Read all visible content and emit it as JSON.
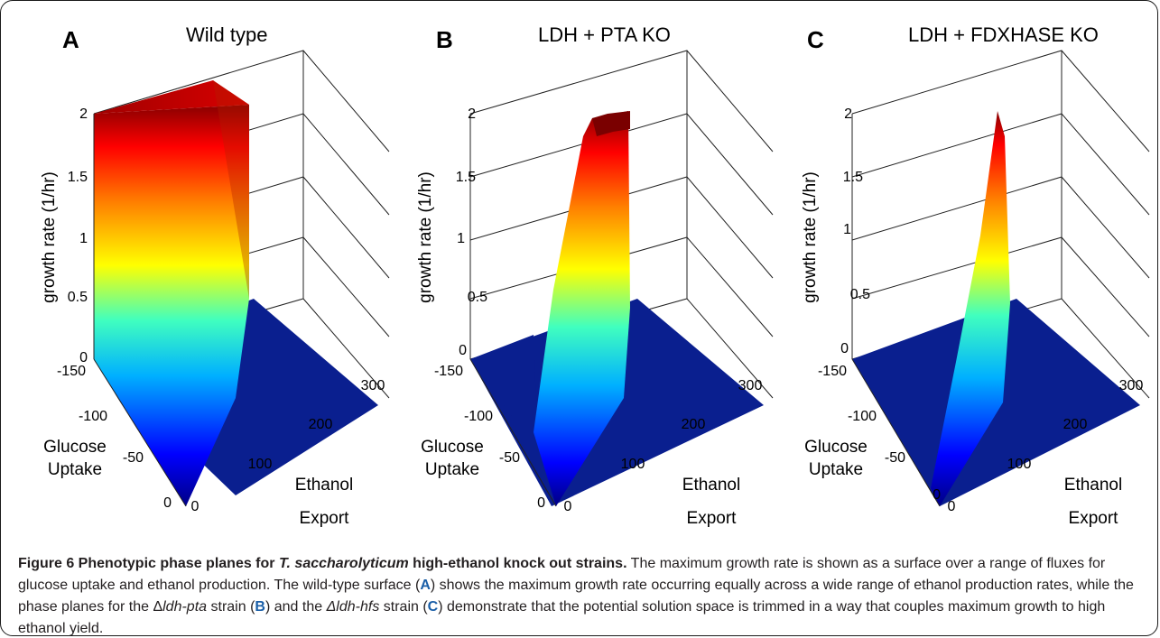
{
  "figure": {
    "caption": {
      "title_a": "Figure 6 Phenotypic phase planes for ",
      "title_species": "T. saccharolyticum",
      "title_b": " high-ethanol knock out strains.",
      "p1": " The maximum growth rate is shown as a surface over a range of fluxes for glucose uptake and ethanol production. The wild-type surface (",
      "ref_a": "A",
      "p2": ") shows the maximum growth rate occurring equally across a wide range of ethanol production rates, while the phase planes for the Δ",
      "strain1": "ldh-pta",
      "p3": " strain (",
      "ref_b": "B",
      "p4": ") and the ",
      "strain2": "Δldh-hfs",
      "p5": " strain (",
      "ref_c": "C",
      "p6": ") demonstrate that the potential solution space is trimmed in a way that couples maximum growth to high ethanol yield."
    }
  },
  "chart_data": [
    {
      "type": "surface",
      "panel_letter": "A",
      "title": "Wild type",
      "zlabel": "growth rate (1/hr)",
      "ylabel": [
        "Glucose",
        "Uptake"
      ],
      "xlabel": [
        "Ethanol",
        "Export"
      ],
      "zlim": [
        0,
        2
      ],
      "z_ticks": [
        "0",
        "0.5",
        "1",
        "1.5",
        "2"
      ],
      "glucose_ticks": [
        "-150",
        "-100",
        "-50",
        "0"
      ],
      "ethanol_ticks": [
        "0",
        "100",
        "200",
        "300"
      ],
      "grid": true,
      "colormap": "jet",
      "floor_color": "#0a1f8f",
      "max_growth_rate": 2,
      "nonzero_region": "ethanol 0–~100 across glucose 0 to -150"
    },
    {
      "type": "surface",
      "panel_letter": "B",
      "title": "LDH + PTA KO",
      "zlabel": "growth rate (1/hr)",
      "ylabel": [
        "Glucose",
        "Uptake"
      ],
      "xlabel": [
        "Ethanol",
        "Export"
      ],
      "zlim": [
        0,
        2
      ],
      "z_ticks": [
        "0",
        "0.5",
        "1",
        "1.5",
        "2"
      ],
      "glucose_ticks": [
        "-150",
        "-100",
        "-50",
        "0"
      ],
      "ethanol_ticks": [
        "0",
        "100",
        "200",
        "300"
      ],
      "grid": true,
      "colormap": "jet",
      "floor_color": "#0a1f8f",
      "max_growth_rate": 2,
      "nonzero_region": "narrow ridge at high ethanol yield"
    },
    {
      "type": "surface",
      "panel_letter": "C",
      "title": "LDH + FDXHASE KO",
      "zlabel": "growth rate (1/hr)",
      "ylabel": [
        "Glucose",
        "Uptake"
      ],
      "xlabel": [
        "Ethanol",
        "Export"
      ],
      "zlim": [
        0,
        2
      ],
      "z_ticks": [
        "0",
        "0.5",
        "1",
        "1.5",
        "2"
      ],
      "glucose_ticks": [
        "-150",
        "-100",
        "-50",
        "0"
      ],
      "ethanol_ticks": [
        "0",
        "100",
        "200",
        "300"
      ],
      "grid": true,
      "colormap": "jet",
      "floor_color": "#0a1f8f",
      "max_growth_rate": 2,
      "nonzero_region": "thin spike at maximal ethanol yield"
    }
  ]
}
